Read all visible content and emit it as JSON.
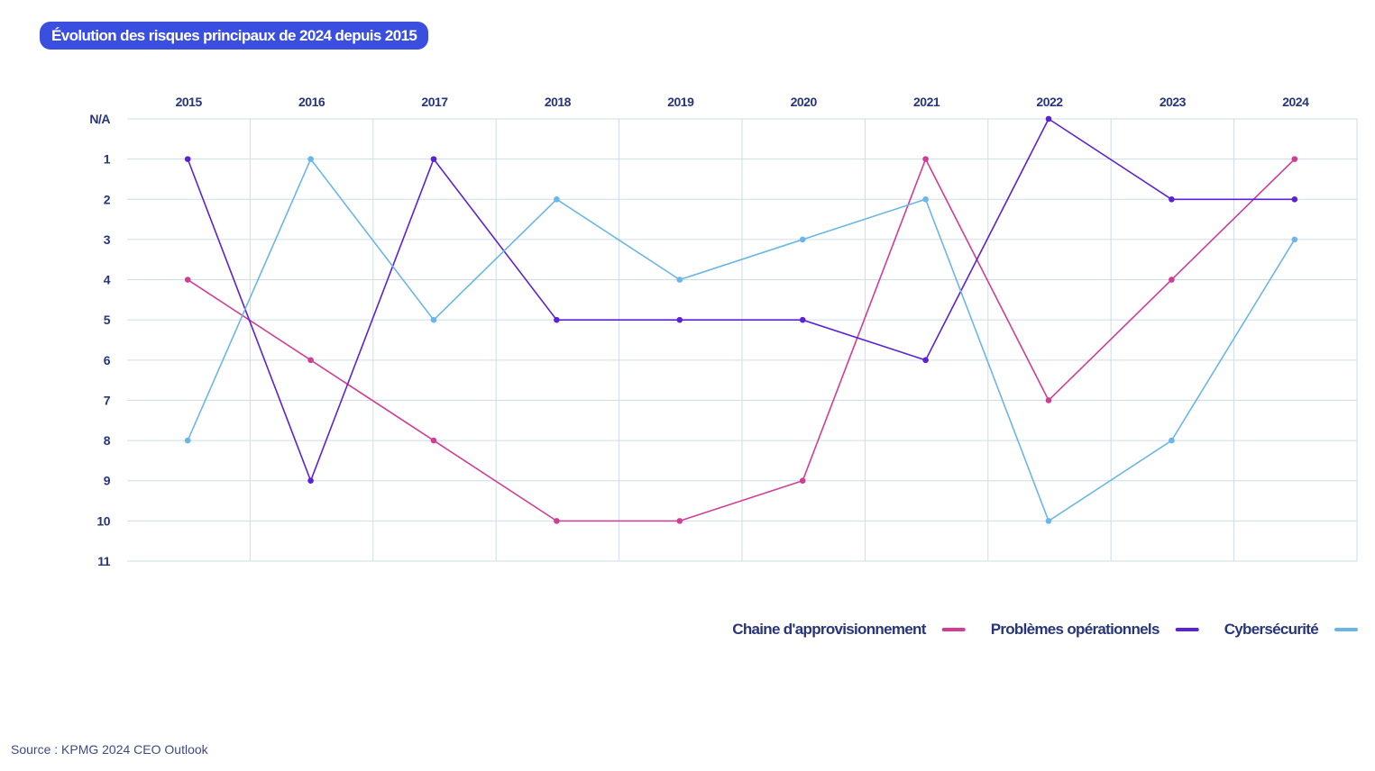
{
  "title": "Évolution des risques principaux de 2024 depuis 2015",
  "source": "Source : KPMG 2024 CEO Outlook",
  "chart_data": {
    "type": "line",
    "title": "Évolution des risques principaux de 2024 depuis 2015",
    "x": [
      "2015",
      "2016",
      "2017",
      "2018",
      "2019",
      "2020",
      "2021",
      "2022",
      "2023",
      "2024"
    ],
    "y_ticks": [
      "N/A",
      "1",
      "2",
      "3",
      "4",
      "5",
      "6",
      "7",
      "8",
      "9",
      "10",
      "11"
    ],
    "y_axis": "rank, inverted (N/A at top, 11 at bottom)",
    "x_axis_position": "top",
    "grid": true,
    "legend_position": "bottom-right",
    "series": [
      {
        "name": "Chaine d'approvisionnement",
        "color": "#d03d95",
        "values": [
          4,
          6,
          8,
          10,
          10,
          9,
          1,
          7,
          4,
          1
        ]
      },
      {
        "name": "Problèmes opérationnels",
        "color": "#5a22d4",
        "values": [
          1,
          9,
          1,
          5,
          5,
          5,
          6,
          "N/A",
          2,
          2
        ]
      },
      {
        "name": "Cybersécurité",
        "color": "#6ab6e8",
        "values": [
          8,
          1,
          5,
          2,
          4,
          3,
          2,
          10,
          8,
          3
        ]
      }
    ]
  }
}
